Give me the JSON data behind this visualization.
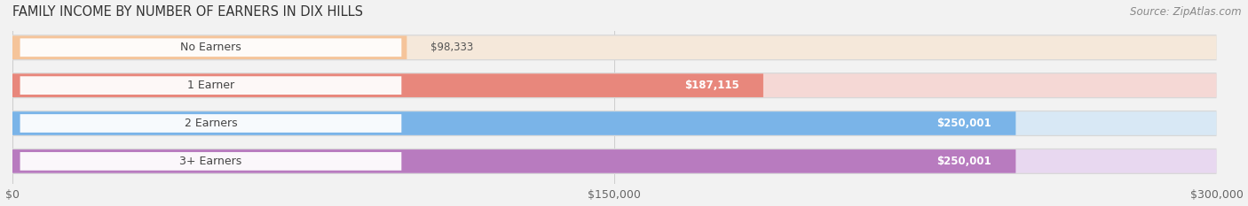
{
  "title": "FAMILY INCOME BY NUMBER OF EARNERS IN DIX HILLS",
  "source": "Source: ZipAtlas.com",
  "categories": [
    "No Earners",
    "1 Earner",
    "2 Earners",
    "3+ Earners"
  ],
  "values": [
    98333,
    187115,
    250001,
    250001
  ],
  "bar_colors": [
    "#f5c49a",
    "#e8877c",
    "#7ab4e8",
    "#b87bbf"
  ],
  "track_colors": [
    "#f5e8da",
    "#f5d8d5",
    "#d8e8f5",
    "#e8d8f0"
  ],
  "label_colors": [
    "#555555",
    "#ffffff",
    "#ffffff",
    "#ffffff"
  ],
  "value_labels": [
    "$98,333",
    "$187,115",
    "$250,001",
    "$250,001"
  ],
  "xlim": [
    0,
    300000
  ],
  "xticks": [
    0,
    150000,
    300000
  ],
  "xtick_labels": [
    "$0",
    "$150,000",
    "$300,000"
  ],
  "background_color": "#f2f2f2",
  "title_fontsize": 10.5,
  "source_fontsize": 8.5,
  "label_fontsize": 9,
  "value_fontsize": 8.5,
  "tick_fontsize": 9
}
